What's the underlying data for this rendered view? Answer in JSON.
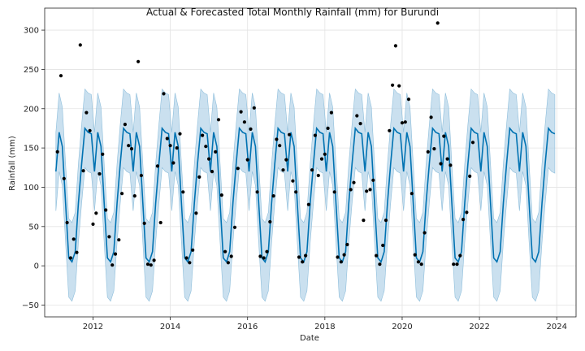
{
  "chart_data": {
    "type": "line",
    "title": "Actual & Forecasted Total Monthly Rainfall (mm) for Burundi",
    "xlabel": "Date",
    "ylabel": "Rainfall (mm)",
    "xlim": [
      2010.75,
      2024.5
    ],
    "ylim": [
      -65,
      328
    ],
    "x_ticks": [
      2012,
      2014,
      2016,
      2018,
      2020,
      2022,
      2024
    ],
    "x_tick_labels": [
      "2012",
      "2014",
      "2016",
      "2018",
      "2020",
      "2022",
      "2024"
    ],
    "y_ticks": [
      -50,
      0,
      50,
      100,
      150,
      200,
      250,
      300
    ],
    "y_tick_labels": [
      "−50",
      "0",
      "50",
      "100",
      "150",
      "200",
      "250",
      "300"
    ],
    "grid": true,
    "colors": {
      "forecast_line": "#0072b2",
      "interval_fill": "#aed0e6",
      "actual_points": "#000000"
    },
    "forecast": {
      "x_start": 2011.04,
      "x_step": 0.0833,
      "yhat_cycle": [
        120,
        170,
        152,
        80,
        10,
        5,
        18,
        80,
        130,
        175,
        170,
        168
      ],
      "interval_half_width": 50
    },
    "actual_points": [
      [
        2011.08,
        145
      ],
      [
        2011.17,
        242
      ],
      [
        2011.25,
        111
      ],
      [
        2011.33,
        55
      ],
      [
        2011.42,
        10
      ],
      [
        2011.5,
        34
      ],
      [
        2011.58,
        17
      ],
      [
        2011.67,
        281
      ],
      [
        2011.75,
        121
      ],
      [
        2011.83,
        195
      ],
      [
        2011.92,
        172
      ],
      [
        2012.0,
        53
      ],
      [
        2012.08,
        67
      ],
      [
        2012.17,
        117
      ],
      [
        2012.25,
        142
      ],
      [
        2012.33,
        71
      ],
      [
        2012.42,
        37
      ],
      [
        2012.5,
        1
      ],
      [
        2012.58,
        15
      ],
      [
        2012.67,
        33
      ],
      [
        2012.75,
        92
      ],
      [
        2012.83,
        180
      ],
      [
        2012.92,
        153
      ],
      [
        2013.0,
        149
      ],
      [
        2013.08,
        89
      ],
      [
        2013.17,
        260
      ],
      [
        2013.25,
        115
      ],
      [
        2013.33,
        54
      ],
      [
        2013.42,
        2
      ],
      [
        2013.5,
        1
      ],
      [
        2013.58,
        7
      ],
      [
        2013.67,
        127
      ],
      [
        2013.75,
        55
      ],
      [
        2013.83,
        219
      ],
      [
        2013.92,
        162
      ],
      [
        2014.0,
        153
      ],
      [
        2014.08,
        131
      ],
      [
        2014.17,
        150
      ],
      [
        2014.25,
        168
      ],
      [
        2014.33,
        94
      ],
      [
        2014.42,
        10
      ],
      [
        2014.5,
        4
      ],
      [
        2014.58,
        20
      ],
      [
        2014.67,
        67
      ],
      [
        2014.75,
        113
      ],
      [
        2014.83,
        166
      ],
      [
        2014.92,
        152
      ],
      [
        2015.0,
        136
      ],
      [
        2015.08,
        120
      ],
      [
        2015.17,
        145
      ],
      [
        2015.25,
        186
      ],
      [
        2015.33,
        90
      ],
      [
        2015.42,
        18
      ],
      [
        2015.5,
        4
      ],
      [
        2015.58,
        12
      ],
      [
        2015.67,
        49
      ],
      [
        2015.75,
        124
      ],
      [
        2015.83,
        196
      ],
      [
        2015.92,
        183
      ],
      [
        2016.0,
        135
      ],
      [
        2016.08,
        174
      ],
      [
        2016.17,
        201
      ],
      [
        2016.25,
        94
      ],
      [
        2016.33,
        12
      ],
      [
        2016.42,
        10
      ],
      [
        2016.5,
        18
      ],
      [
        2016.58,
        56
      ],
      [
        2016.67,
        89
      ],
      [
        2016.75,
        161
      ],
      [
        2016.83,
        153
      ],
      [
        2016.92,
        122
      ],
      [
        2017.0,
        135
      ],
      [
        2017.08,
        167
      ],
      [
        2017.17,
        108
      ],
      [
        2017.25,
        94
      ],
      [
        2017.33,
        11
      ],
      [
        2017.42,
        5
      ],
      [
        2017.5,
        13
      ],
      [
        2017.58,
        78
      ],
      [
        2017.67,
        122
      ],
      [
        2017.75,
        166
      ],
      [
        2017.83,
        115
      ],
      [
        2017.92,
        136
      ],
      [
        2018.0,
        142
      ],
      [
        2018.08,
        175
      ],
      [
        2018.17,
        195
      ],
      [
        2018.25,
        94
      ],
      [
        2018.33,
        11
      ],
      [
        2018.42,
        5
      ],
      [
        2018.5,
        14
      ],
      [
        2018.58,
        27
      ],
      [
        2018.67,
        97
      ],
      [
        2018.75,
        106
      ],
      [
        2018.83,
        191
      ],
      [
        2018.92,
        181
      ],
      [
        2019.0,
        58
      ],
      [
        2019.08,
        95
      ],
      [
        2019.17,
        97
      ],
      [
        2019.25,
        109
      ],
      [
        2019.33,
        13
      ],
      [
        2019.42,
        2
      ],
      [
        2019.5,
        26
      ],
      [
        2019.58,
        58
      ],
      [
        2019.67,
        172
      ],
      [
        2019.75,
        230
      ],
      [
        2019.83,
        280
      ],
      [
        2019.92,
        229
      ],
      [
        2020.0,
        182
      ],
      [
        2020.08,
        183
      ],
      [
        2020.17,
        212
      ],
      [
        2020.25,
        92
      ],
      [
        2020.33,
        14
      ],
      [
        2020.42,
        5
      ],
      [
        2020.5,
        2
      ],
      [
        2020.58,
        42
      ],
      [
        2020.67,
        145
      ],
      [
        2020.75,
        189
      ],
      [
        2020.83,
        149
      ],
      [
        2020.92,
        309
      ],
      [
        2021.0,
        130
      ],
      [
        2021.08,
        165
      ],
      [
        2021.17,
        136
      ],
      [
        2021.25,
        128
      ],
      [
        2021.33,
        2
      ],
      [
        2021.42,
        2
      ],
      [
        2021.5,
        13
      ],
      [
        2021.58,
        59
      ],
      [
        2021.67,
        68
      ],
      [
        2021.75,
        114
      ],
      [
        2021.83,
        157
      ]
    ]
  }
}
